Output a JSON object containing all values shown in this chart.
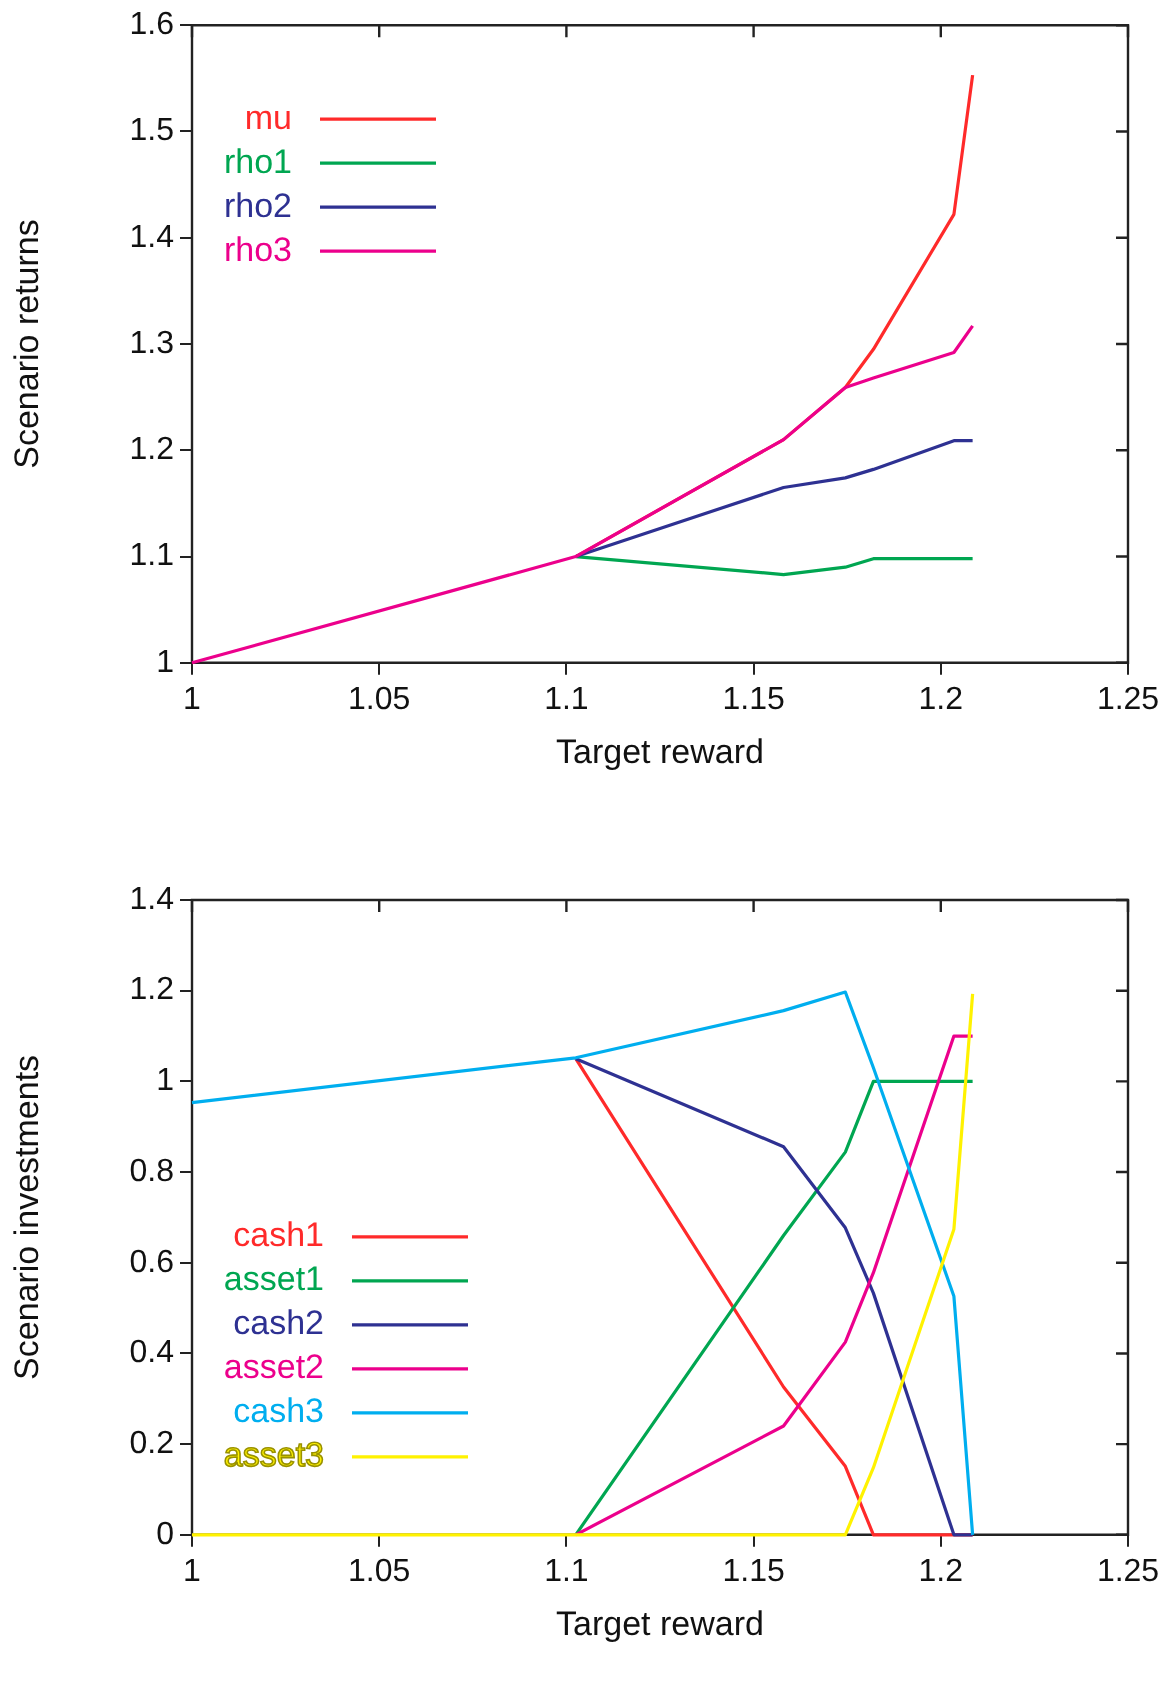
{
  "chart_data": [
    {
      "type": "line",
      "xlabel": "Target reward",
      "ylabel": "Scenario returns",
      "x": [
        1,
        1.1025,
        1.158,
        1.1745,
        1.182,
        1.2035,
        1.2085
      ],
      "series": [
        {
          "name": "mu",
          "color": "#ff2a2a",
          "values": [
            null,
            1.1,
            1.21,
            1.259,
            1.295,
            1.422,
            1.553
          ]
        },
        {
          "name": "rho1",
          "color": "#00a651",
          "values": [
            null,
            1.1,
            1.083,
            1.09,
            1.098,
            1.098,
            1.098
          ]
        },
        {
          "name": "rho2",
          "color": "#2e3192",
          "values": [
            null,
            1.1,
            1.165,
            1.174,
            1.182,
            1.209,
            1.209
          ]
        },
        {
          "name": "rho3",
          "color": "#ec008c",
          "values": [
            1,
            1.1,
            1.21,
            1.259,
            1.268,
            1.292,
            1.317
          ]
        }
      ],
      "xlim": [
        1,
        1.25
      ],
      "xticks": [
        1,
        1.05,
        1.1,
        1.15,
        1.2,
        1.25
      ],
      "ylim": [
        1,
        1.6
      ],
      "yticks": [
        1,
        1.1,
        1.2,
        1.3,
        1.4,
        1.5,
        1.6
      ],
      "grid": false,
      "legend": "top left"
    },
    {
      "type": "line",
      "xlabel": "Target reward",
      "ylabel": "Scenario investments",
      "x": [
        1,
        1.1025,
        1.158,
        1.1745,
        1.182,
        1.2035,
        1.2085
      ],
      "series": [
        {
          "name": "cash1",
          "color": "#ff2a2a",
          "values": [
            null,
            1.05,
            0.326,
            0.151,
            0,
            0,
            0
          ]
        },
        {
          "name": "asset1",
          "color": "#00a651",
          "values": [
            null,
            0,
            0.66,
            0.844,
            1,
            1,
            1
          ]
        },
        {
          "name": "cash2",
          "color": "#2e3192",
          "values": [
            null,
            1.05,
            0.856,
            0.677,
            0.533,
            0,
            0
          ]
        },
        {
          "name": "asset2",
          "color": "#ec008c",
          "values": [
            null,
            0,
            0.24,
            0.425,
            0.578,
            1.1,
            1.1
          ]
        },
        {
          "name": "cash3",
          "color": "#00aeef",
          "values": [
            0.953,
            1.052,
            1.156,
            1.197,
            1.03,
            0.526,
            0
          ]
        },
        {
          "name": "asset3",
          "color": "#fff200",
          "values": [
            0,
            0,
            0,
            0,
            0.148,
            0.674,
            1.193
          ]
        }
      ],
      "xlim": [
        1,
        1.25
      ],
      "xticks": [
        1,
        1.05,
        1.1,
        1.15,
        1.2,
        1.25
      ],
      "ylim": [
        0,
        1.4
      ],
      "yticks": [
        0,
        0.2,
        0.4,
        0.6,
        0.8,
        1,
        1.2,
        1.4
      ],
      "grid": false,
      "legend": "bottom left"
    }
  ]
}
